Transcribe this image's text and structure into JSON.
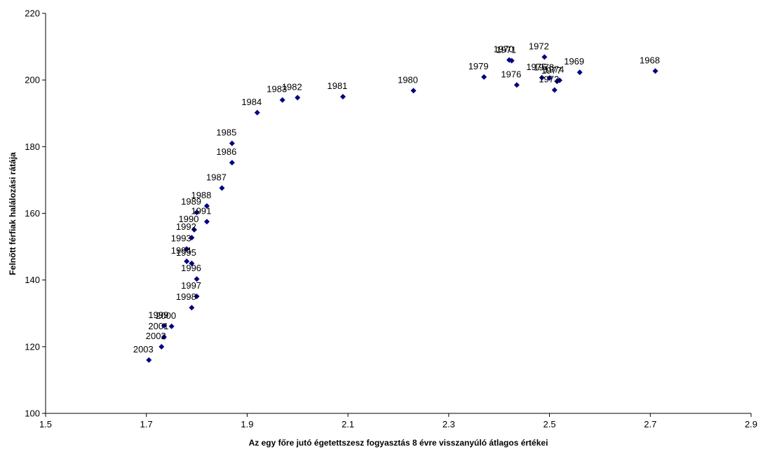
{
  "chart_data": {
    "type": "scatter",
    "title": "",
    "xlabel": "Az egy főre jutó égetettszesz fogyasztás 8 évre visszanyúló átlagos értékei",
    "ylabel": "Felnőtt férfiak halálozási rátája",
    "xlim": [
      1.5,
      2.9
    ],
    "ylim": [
      100,
      220
    ],
    "xticks": [
      "1.5",
      "1.7",
      "1.9",
      "2.1",
      "2.3",
      "2.5",
      "2.7",
      "2.9"
    ],
    "yticks": [
      "100",
      "120",
      "140",
      "160",
      "180",
      "200",
      "220"
    ],
    "grid": false,
    "legend": "none",
    "marker_color": "#000080",
    "points": [
      {
        "label": "1968",
        "x": 2.71,
        "y": 202.7
      },
      {
        "label": "1969",
        "x": 2.56,
        "y": 202.3
      },
      {
        "label": "1970",
        "x": 2.42,
        "y": 206.0
      },
      {
        "label": "1971",
        "x": 2.425,
        "y": 205.8
      },
      {
        "label": "1972",
        "x": 2.49,
        "y": 206.9
      },
      {
        "label": "1973",
        "x": 2.51,
        "y": 197.0
      },
      {
        "label": "1974",
        "x": 2.52,
        "y": 199.9
      },
      {
        "label": "1975",
        "x": 2.485,
        "y": 200.7
      },
      {
        "label": "1976",
        "x": 2.435,
        "y": 198.5
      },
      {
        "label": "1977",
        "x": 2.515,
        "y": 199.6
      },
      {
        "label": "1978",
        "x": 2.5,
        "y": 200.6
      },
      {
        "label": "1979",
        "x": 2.37,
        "y": 200.9
      },
      {
        "label": "1980",
        "x": 2.23,
        "y": 196.8
      },
      {
        "label": "1981",
        "x": 2.09,
        "y": 195.0
      },
      {
        "label": "1982",
        "x": 2.0,
        "y": 194.7
      },
      {
        "label": "1983",
        "x": 1.97,
        "y": 194.0
      },
      {
        "label": "1984",
        "x": 1.92,
        "y": 190.2
      },
      {
        "label": "1985",
        "x": 1.87,
        "y": 181.0
      },
      {
        "label": "1986",
        "x": 1.87,
        "y": 175.2
      },
      {
        "label": "1987",
        "x": 1.85,
        "y": 167.6
      },
      {
        "label": "1988",
        "x": 1.82,
        "y": 162.2
      },
      {
        "label": "1989",
        "x": 1.8,
        "y": 160.3
      },
      {
        "label": "1990",
        "x": 1.795,
        "y": 155.1
      },
      {
        "label": "1991",
        "x": 1.82,
        "y": 157.5
      },
      {
        "label": "1992",
        "x": 1.79,
        "y": 152.7
      },
      {
        "label": "1993",
        "x": 1.78,
        "y": 149.3
      },
      {
        "label": "1994",
        "x": 1.78,
        "y": 145.6
      },
      {
        "label": "1995",
        "x": 1.79,
        "y": 145.0
      },
      {
        "label": "1996",
        "x": 1.8,
        "y": 140.3
      },
      {
        "label": "1997",
        "x": 1.8,
        "y": 135.1
      },
      {
        "label": "1998",
        "x": 1.79,
        "y": 131.7
      },
      {
        "label": "1999",
        "x": 1.735,
        "y": 126.3
      },
      {
        "label": "2000",
        "x": 1.75,
        "y": 126.1
      },
      {
        "label": "2001",
        "x": 1.735,
        "y": 122.9
      },
      {
        "label": "2002",
        "x": 1.73,
        "y": 120.0
      },
      {
        "label": "2003",
        "x": 1.705,
        "y": 116.0
      }
    ]
  }
}
